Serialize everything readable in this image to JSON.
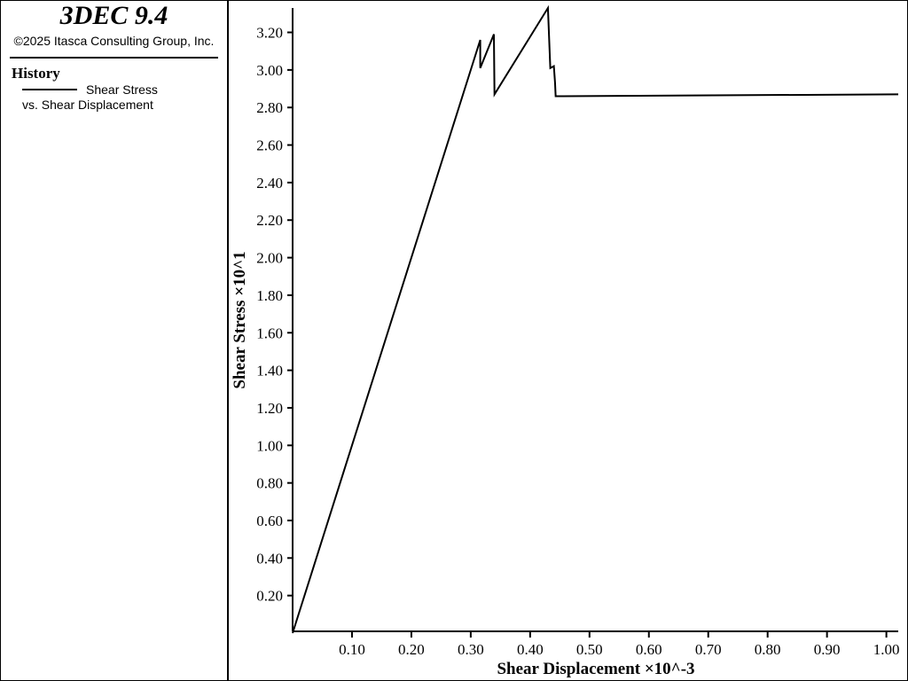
{
  "header": {
    "app_title": "3DEC 9.4",
    "copyright": "©2025 Itasca Consulting Group, Inc."
  },
  "chart_data": {
    "type": "line",
    "legend_title": "History",
    "x_label": "Shear Displacement ×10^-3",
    "y_label": "Shear Stress ×10^1",
    "x": [
      0,
      0.316,
      0.316,
      0.339,
      0.34,
      0.43,
      0.434,
      0.44,
      0.442,
      0.443,
      1.02
    ],
    "series": [
      {
        "name": "Shear Stress vs. Shear Displacement",
        "color": "#000000",
        "values": [
          0,
          3.16,
          3.01,
          3.19,
          2.87,
          3.33,
          3.01,
          3.02,
          2.93,
          2.86,
          2.87
        ]
      }
    ],
    "xlim": [
      0,
      1.02
    ],
    "ylim": [
      0,
      3.33
    ],
    "xticks": [
      {
        "value": 0.1,
        "label": "0.10"
      },
      {
        "value": 0.2,
        "label": "0.20"
      },
      {
        "value": 0.3,
        "label": "0.30"
      },
      {
        "value": 0.4,
        "label": "0.40"
      },
      {
        "value": 0.5,
        "label": "0.50"
      },
      {
        "value": 0.6,
        "label": "0.60"
      },
      {
        "value": 0.7,
        "label": "0.70"
      },
      {
        "value": 0.8,
        "label": "0.80"
      },
      {
        "value": 0.9,
        "label": "0.90"
      },
      {
        "value": 1.0,
        "label": "1.00"
      }
    ],
    "yticks": [
      {
        "value": 0.2,
        "label": "0.20"
      },
      {
        "value": 0.4,
        "label": "0.40"
      },
      {
        "value": 0.6,
        "label": "0.60"
      },
      {
        "value": 0.8,
        "label": "0.80"
      },
      {
        "value": 1.0,
        "label": "1.00"
      },
      {
        "value": 1.2,
        "label": "1.20"
      },
      {
        "value": 1.4,
        "label": "1.40"
      },
      {
        "value": 1.6,
        "label": "1.60"
      },
      {
        "value": 1.8,
        "label": "1.80"
      },
      {
        "value": 2.0,
        "label": "2.00"
      },
      {
        "value": 2.2,
        "label": "2.20"
      },
      {
        "value": 2.4,
        "label": "2.40"
      },
      {
        "value": 2.6,
        "label": "2.60"
      },
      {
        "value": 2.8,
        "label": "2.80"
      },
      {
        "value": 3.0,
        "label": "3.00"
      },
      {
        "value": 3.2,
        "label": "3.20"
      }
    ]
  }
}
